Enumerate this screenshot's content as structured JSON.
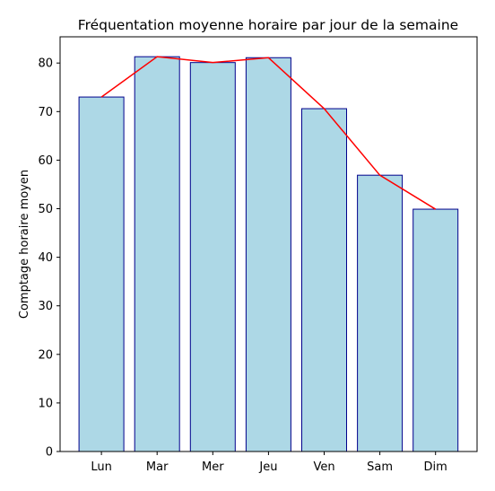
{
  "chart_data": {
    "type": "bar",
    "title": "Fréquentation moyenne horaire par jour de la semaine",
    "xlabel": "",
    "ylabel": "Comptage horaire moyen",
    "categories": [
      "Lun",
      "Mar",
      "Mer",
      "Jeu",
      "Ven",
      "Sam",
      "Dim"
    ],
    "values": [
      73.0,
      81.3,
      80.1,
      81.1,
      70.6,
      56.9,
      49.9
    ],
    "overlay_line": {
      "values": [
        73.0,
        81.3,
        80.1,
        81.1,
        70.6,
        56.9,
        49.9
      ],
      "color": "#ff0000"
    },
    "ylim": [
      0,
      85.4
    ],
    "yticks": [
      0,
      10,
      20,
      30,
      40,
      50,
      60,
      70,
      80
    ],
    "grid": false,
    "legend": "none",
    "colors": {
      "bar_fill": "#add8e6",
      "bar_edge": "#00008b",
      "line": "#ff0000"
    }
  }
}
